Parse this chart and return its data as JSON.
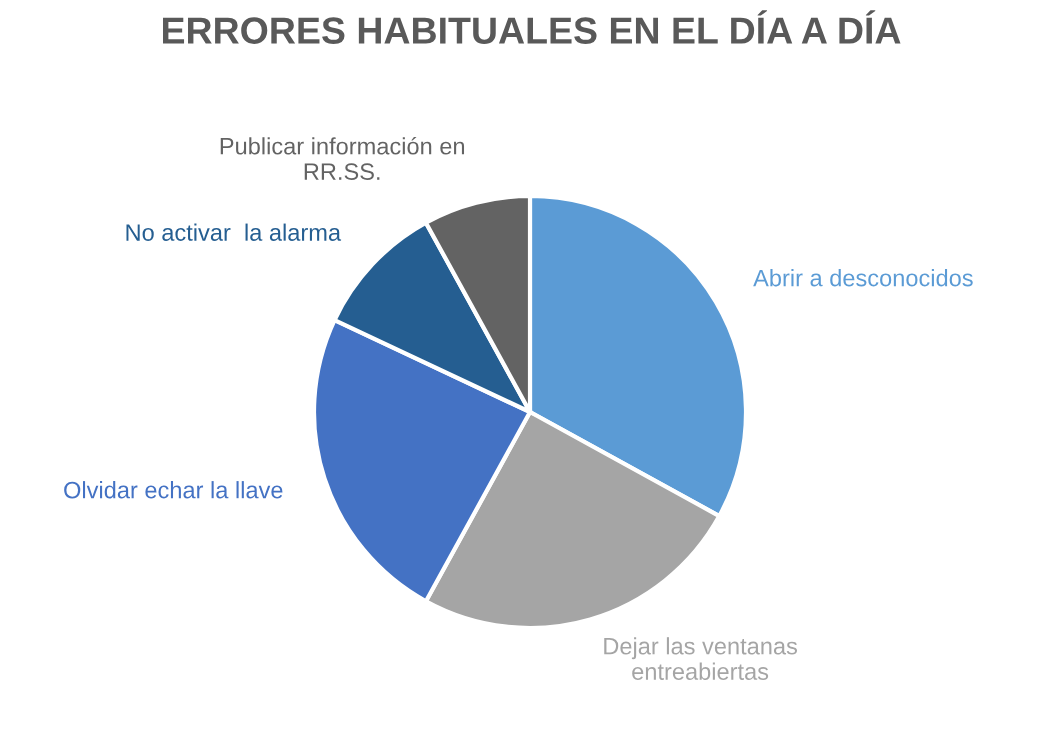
{
  "chart_data": {
    "type": "pie",
    "title": "ERRORES HABITUALES EN EL DÍA A DÍA",
    "categories": [
      "Abrir a desconocidos",
      "Dejar las ventanas\nentreabiertas",
      "Olvidar echar la llave",
      "No activar  la alarma",
      "Publicar información en\nRR.SS."
    ],
    "values": [
      33,
      25,
      24,
      10,
      8
    ],
    "colors": [
      "#5b9bd5",
      "#a5a5a5",
      "#4472c4",
      "#255e91",
      "#636363"
    ],
    "legend": false
  }
}
